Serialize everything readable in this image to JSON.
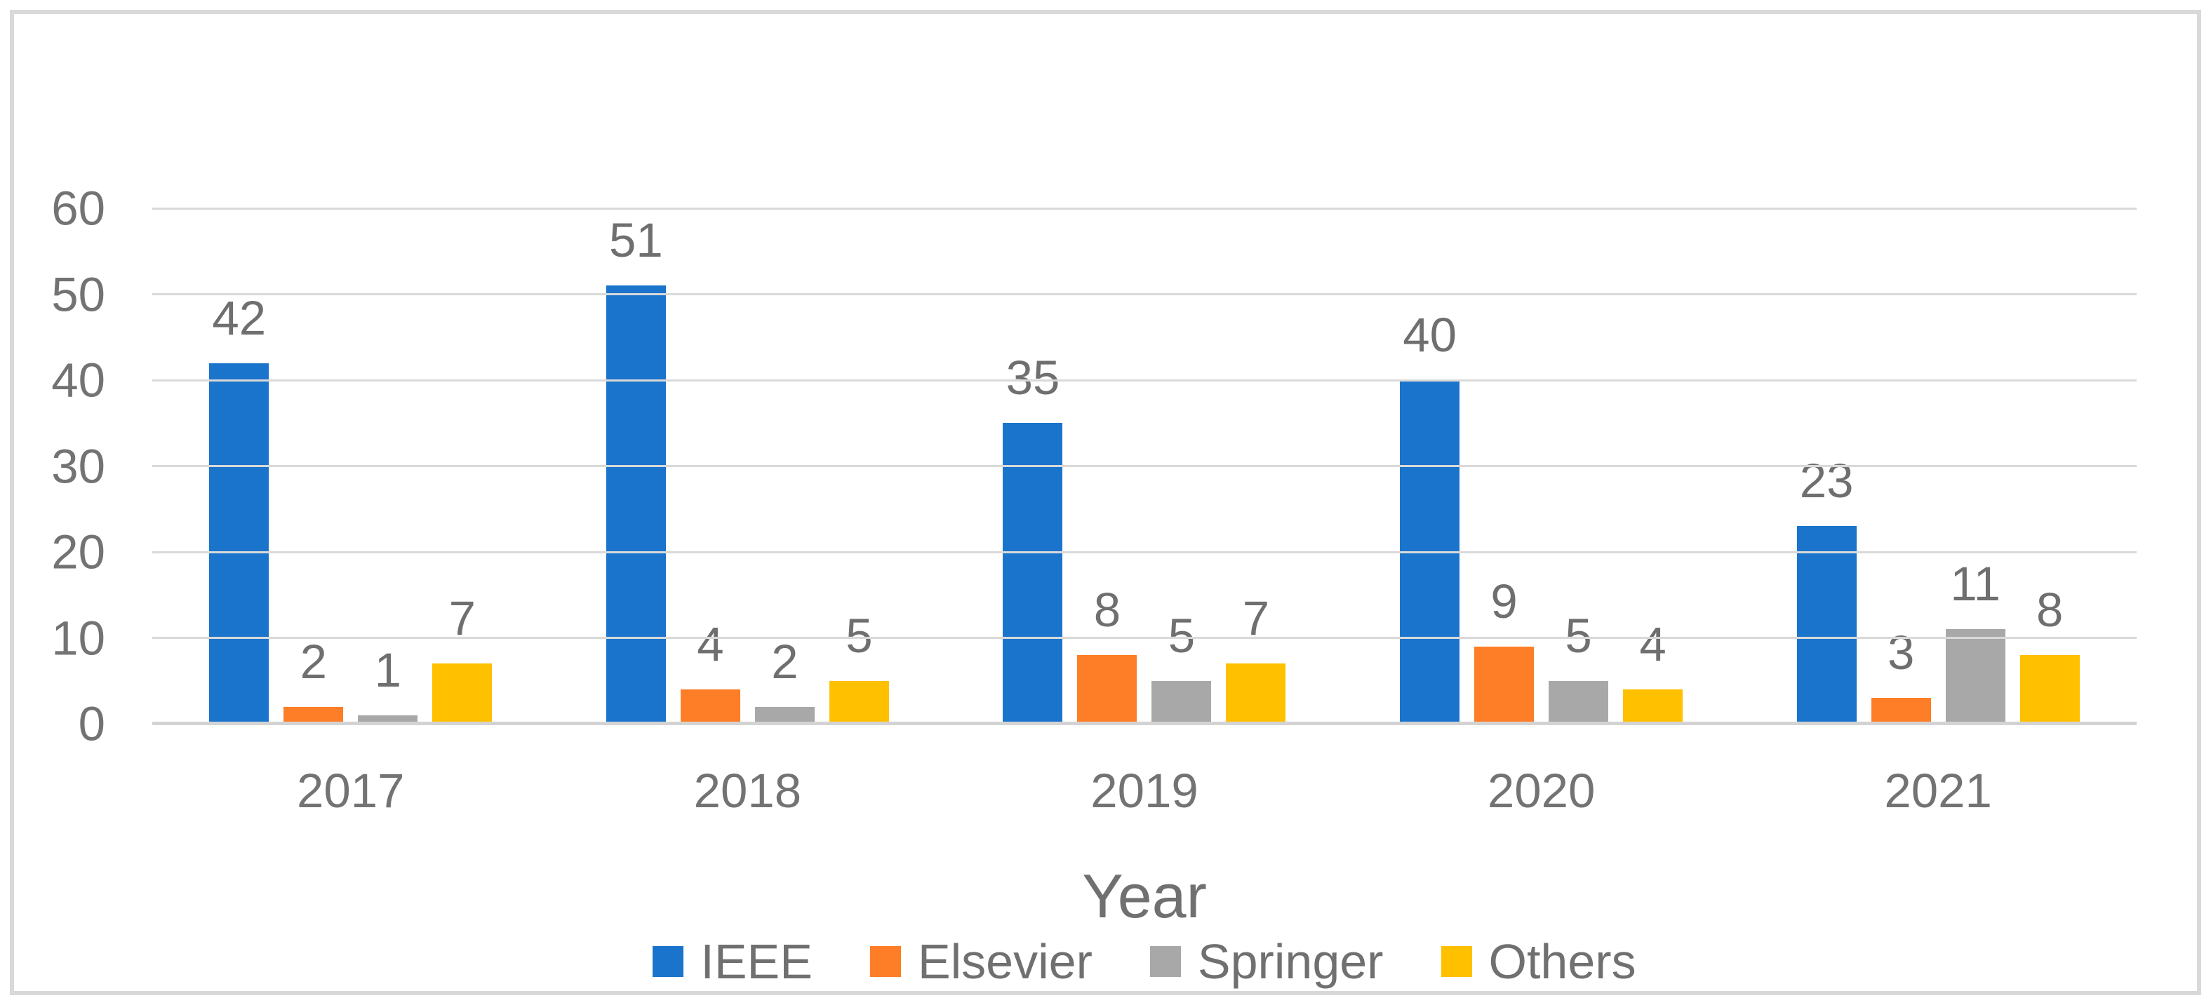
{
  "figure": {
    "background": "#FFFFFF",
    "border_color": "#D9D9D9",
    "gridline_color": "#D9D9D9",
    "text_color": "#707070"
  },
  "chart_data": {
    "type": "bar",
    "title": "",
    "xlabel": "Year",
    "ylabel": "",
    "categories": [
      "2017",
      "2018",
      "2019",
      "2020",
      "2021"
    ],
    "series": [
      {
        "name": "IEEE",
        "color": "#1B74CC",
        "values": [
          42,
          51,
          35,
          40,
          23
        ]
      },
      {
        "name": "Elsevier",
        "color": "#FD7E27",
        "values": [
          2,
          4,
          8,
          9,
          3
        ]
      },
      {
        "name": "Springer",
        "color": "#A8A8A8",
        "values": [
          1,
          2,
          5,
          5,
          11
        ]
      },
      {
        "name": "Others",
        "color": "#FFC000",
        "values": [
          7,
          5,
          7,
          4,
          8
        ]
      }
    ],
    "ylim": [
      0,
      60
    ],
    "yticks": [
      0,
      10,
      20,
      30,
      40,
      50,
      60
    ],
    "grid": true,
    "data_labels": true,
    "legend_position": "bottom"
  }
}
